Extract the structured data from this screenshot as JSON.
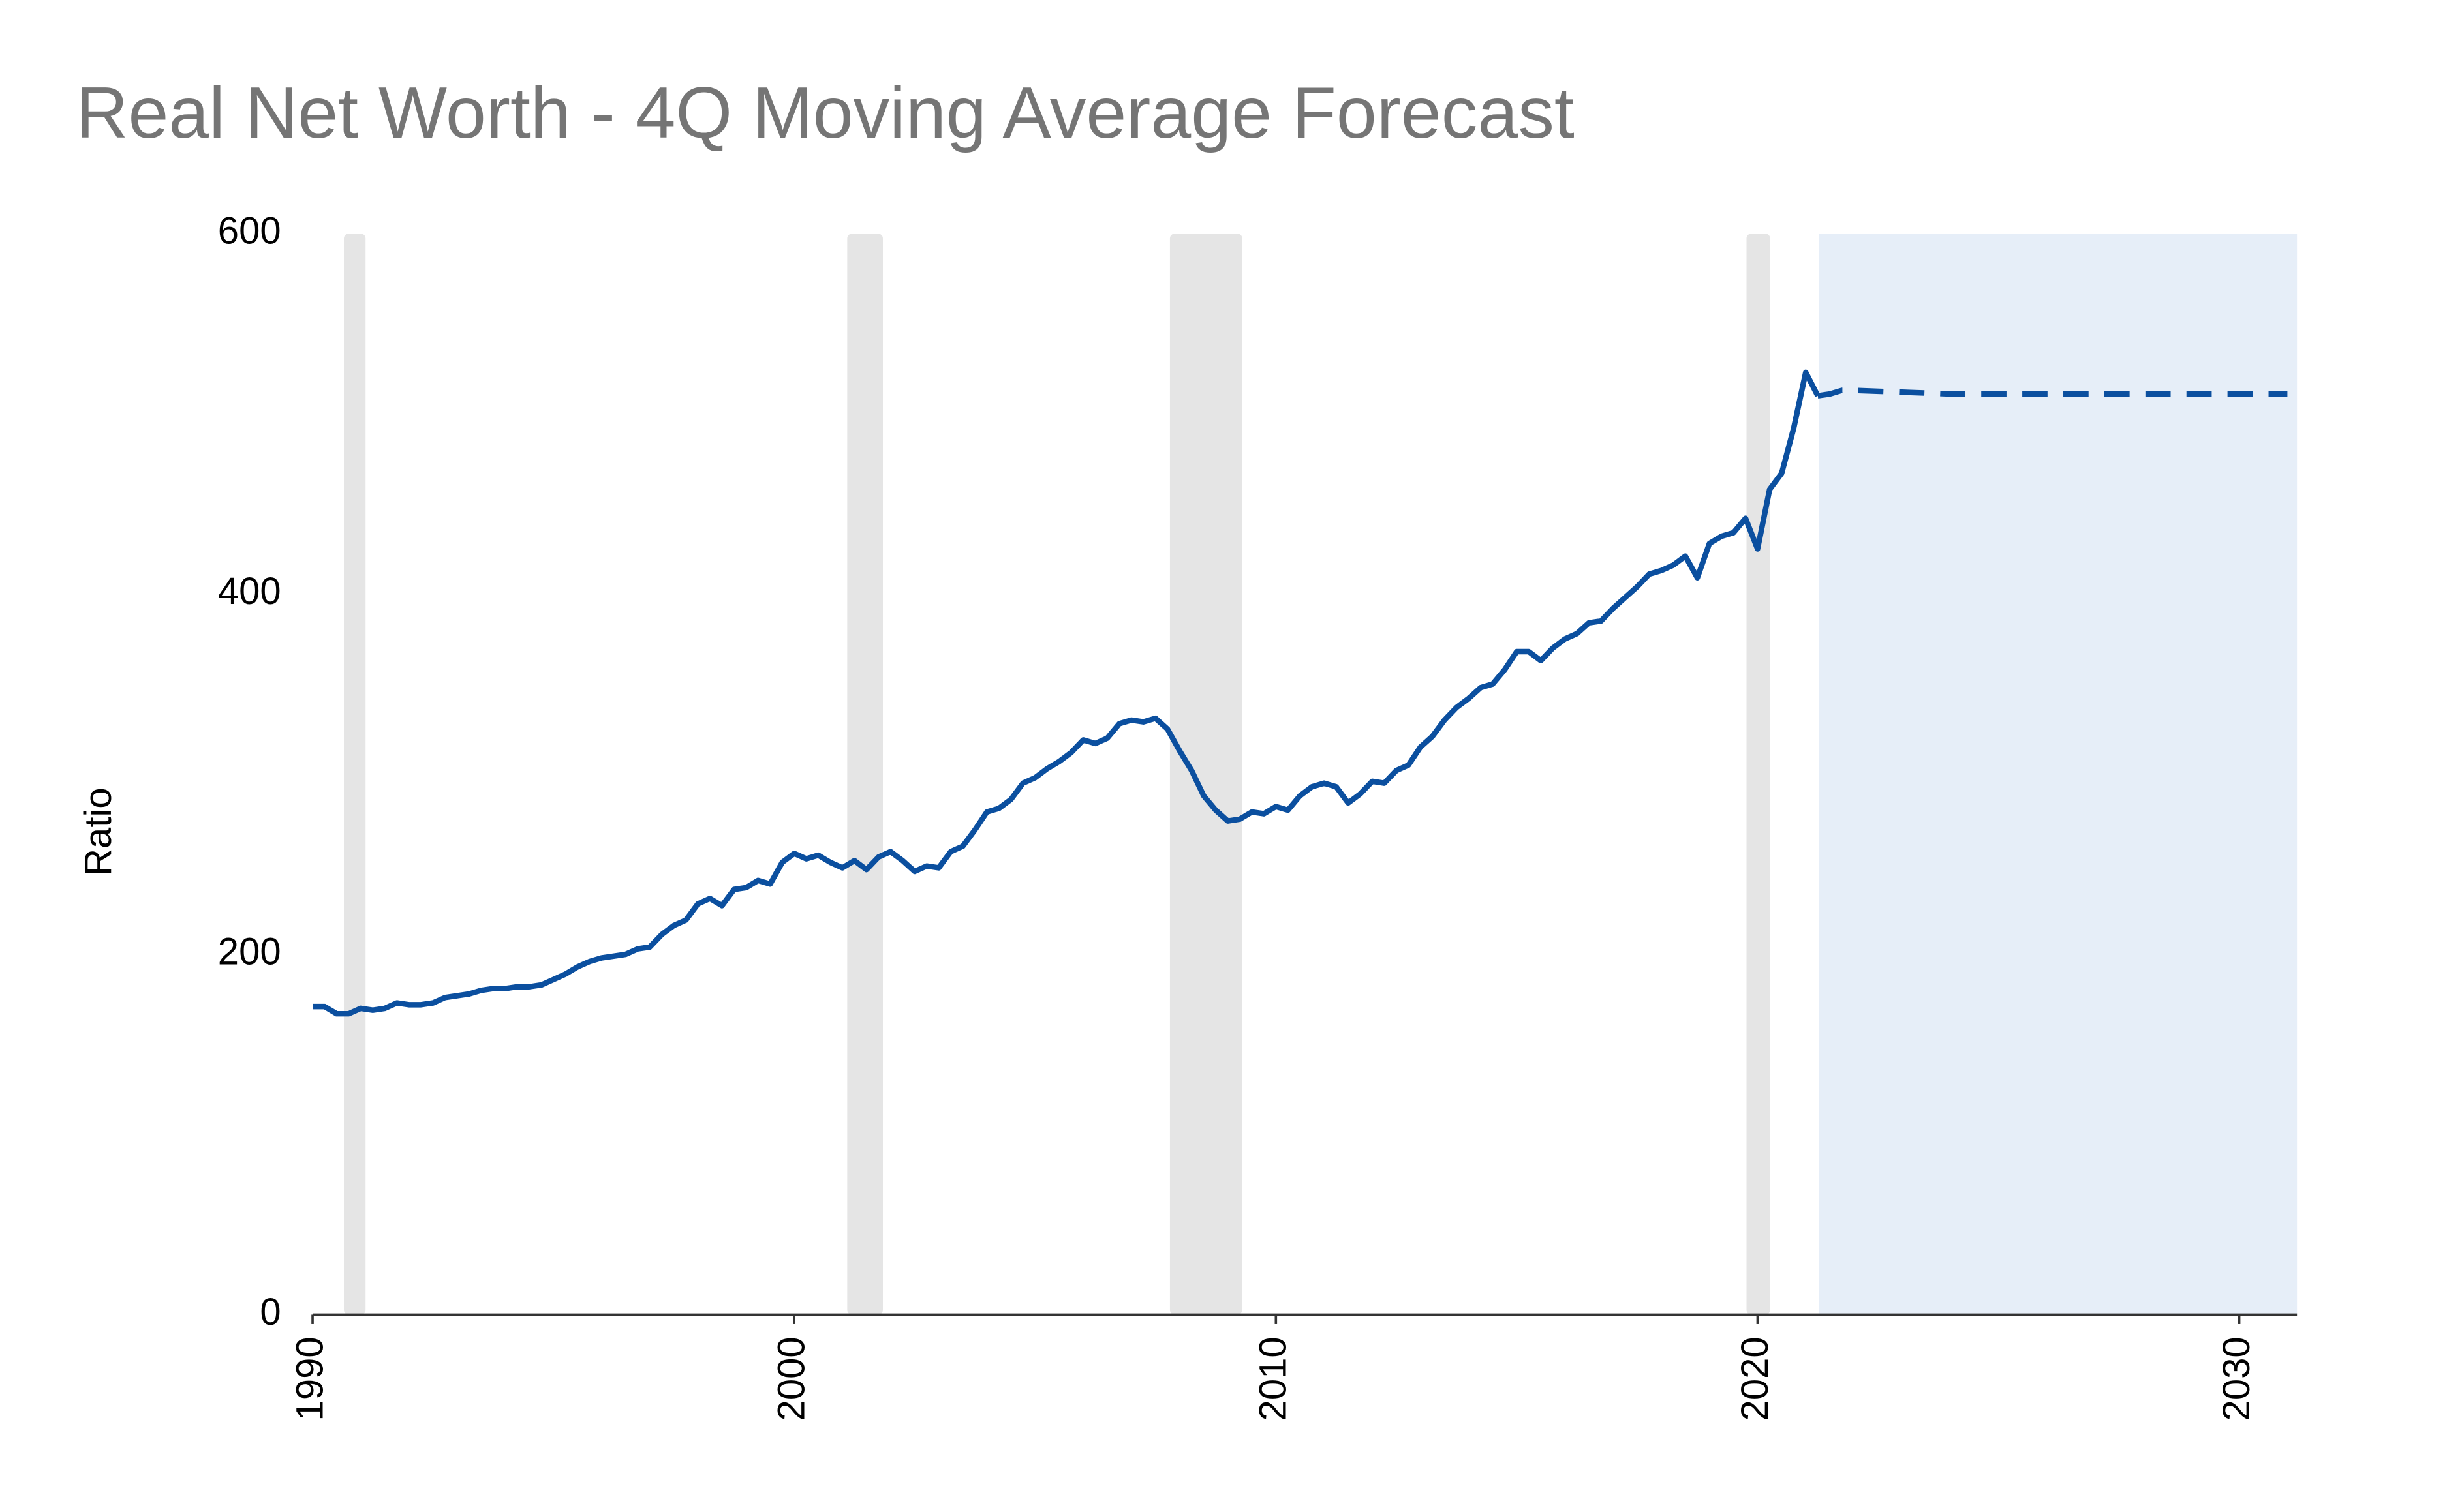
{
  "chart_data": {
    "type": "line",
    "title": "Real Net Worth - 4Q Moving Average Forecast",
    "ylabel": "Ratio",
    "xlim": [
      1990,
      2031.2
    ],
    "xticks": [
      1990,
      2000,
      2010,
      2020,
      2030
    ],
    "ylim": [
      0,
      600
    ],
    "yticks": [
      0,
      200,
      400,
      600
    ],
    "grid": false,
    "recessions": [
      [
        1990.65,
        1991.1
      ],
      [
        2001.1,
        2001.84
      ],
      [
        2007.8,
        2009.3
      ],
      [
        2019.77,
        2020.26
      ]
    ],
    "recession_color": "#e5e5e5",
    "forecast_region": [
      2021.28,
      2031.2
    ],
    "forecast_region_color": "#e6eef8",
    "series": [
      {
        "name": "Real Net Worth",
        "color": "#0b4f9f",
        "dashed": false,
        "x": [
          1990,
          1990.25,
          1990.5,
          1990.75,
          1991,
          1991.25,
          1991.5,
          1991.75,
          1992,
          1992.25,
          1992.5,
          1992.75,
          1993,
          1993.25,
          1993.5,
          1993.75,
          1994,
          1994.25,
          1994.5,
          1994.75,
          1995,
          1995.25,
          1995.5,
          1995.75,
          1996,
          1996.25,
          1996.5,
          1996.75,
          1997,
          1997.25,
          1997.5,
          1997.75,
          1998,
          1998.25,
          1998.5,
          1998.75,
          1999,
          1999.25,
          1999.5,
          1999.75,
          2000,
          2000.25,
          2000.5,
          2000.75,
          2001,
          2001.25,
          2001.5,
          2001.75,
          2002,
          2002.25,
          2002.5,
          2002.75,
          2003,
          2003.25,
          2003.5,
          2003.75,
          2004,
          2004.25,
          2004.5,
          2004.75,
          2005,
          2005.25,
          2005.5,
          2005.75,
          2006,
          2006.25,
          2006.5,
          2006.75,
          2007,
          2007.25,
          2007.5,
          2007.75,
          2008,
          2008.25,
          2008.5,
          2008.75,
          2009,
          2009.25,
          2009.5,
          2009.75,
          2010,
          2010.25,
          2010.5,
          2010.75,
          2011,
          2011.25,
          2011.5,
          2011.75,
          2012,
          2012.25,
          2012.5,
          2012.75,
          2013,
          2013.25,
          2013.5,
          2013.75,
          2014,
          2014.25,
          2014.5,
          2014.75,
          2015,
          2015.25,
          2015.5,
          2015.75,
          2016,
          2016.25,
          2016.5,
          2016.75,
          2017,
          2017.25,
          2017.5,
          2017.75,
          2018,
          2018.25,
          2018.5,
          2018.75,
          2019,
          2019.25,
          2019.5,
          2019.75,
          2020,
          2020.25,
          2020.5,
          2020.75,
          2021,
          2021.25
        ],
        "values": [
          171,
          171,
          167,
          167,
          170,
          169,
          170,
          173,
          172,
          172,
          173,
          176,
          177,
          178,
          180,
          181,
          181,
          182,
          182,
          183,
          186,
          189,
          193,
          196,
          198,
          199,
          200,
          203,
          204,
          211,
          216,
          219,
          228,
          231,
          227,
          236,
          237,
          241,
          239,
          251,
          256,
          253,
          255,
          251,
          248,
          252,
          247,
          254,
          257,
          252,
          246,
          249,
          248,
          257,
          260,
          269,
          279,
          281,
          286,
          295,
          298,
          303,
          307,
          312,
          319,
          317,
          320,
          328,
          330,
          329,
          331,
          325,
          313,
          302,
          288,
          280,
          274,
          275,
          279,
          278,
          282,
          280,
          288,
          293,
          295,
          293,
          284,
          289,
          296,
          295,
          302,
          305,
          315,
          321,
          330,
          337,
          342,
          348,
          350,
          358,
          368,
          368,
          363,
          370,
          375,
          378,
          384,
          385,
          392,
          398,
          404,
          411,
          413,
          416,
          421,
          409,
          428,
          432,
          434,
          442,
          425,
          458,
          467,
          492,
          523,
          510
        ]
      },
      {
        "name": "Forecast",
        "color": "#0b4f9f",
        "dashed": true,
        "x": [
          2021.25,
          2021.5,
          2021.75,
          2022,
          2023,
          2024,
          2025,
          2026,
          2027,
          2028,
          2029,
          2030,
          2031
        ],
        "values": [
          510,
          511,
          513,
          513,
          512,
          511,
          511,
          511,
          511,
          511,
          511,
          511,
          511
        ]
      }
    ]
  }
}
